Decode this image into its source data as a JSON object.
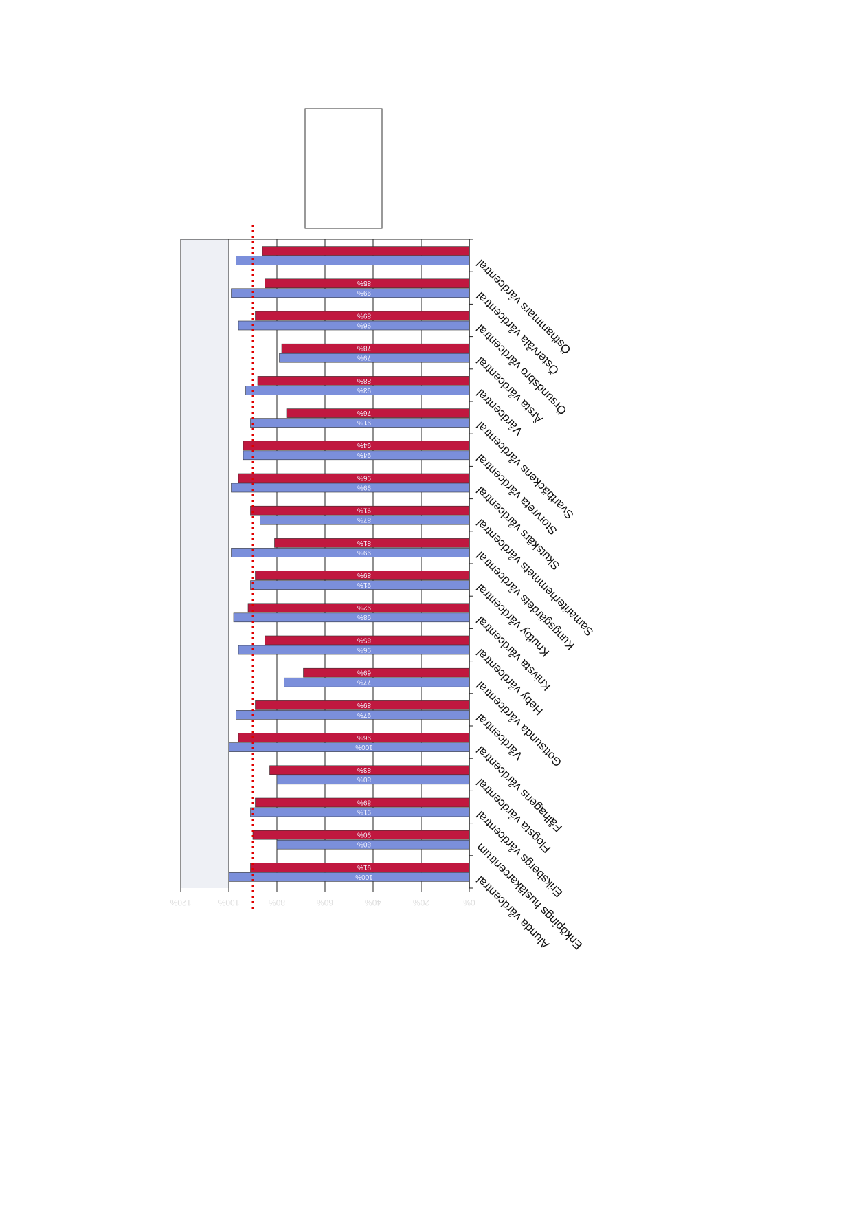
{
  "chart_data": {
    "type": "bar",
    "orientation": "horizontal",
    "categories": [
      "Alunda vårdcentral",
      "Enköpings husläkarcentrum",
      "Eriksbergs vårdcentral",
      "Flogsta vårdcentral",
      "Fålhagens vårdcentral",
      "Vårdcentral",
      "Gottsunda vårdcentral",
      "Heby vårdcentral",
      "Knivsta vårdcentral",
      "Knutby vårdcentral",
      "Kungsgärdets vårdcentral",
      "Samariterhemmets vårdcentral",
      "Skutskärs vårdcentral",
      "Storvreta vårdcentral",
      "Svartbäckens vårdcentral",
      "Vårdcentral",
      "Årsta vårdcentral",
      "Örsundsbro vårdcentral",
      "Östervåla vårdcentral",
      "Östhammars vårdcentral"
    ],
    "series": [
      {
        "color": "#7b8fdb",
        "values": [
          100,
          80,
          91,
          80,
          100,
          97,
          77,
          96,
          98,
          91,
          99,
          87,
          99,
          94,
          91,
          93,
          79,
          96,
          99,
          97
        ],
        "value_labels": [
          "100%",
          "80%",
          "91%",
          "80%",
          "100%",
          "97%",
          "77%",
          "96%",
          "98%",
          "91%",
          "99%",
          "87%",
          "99%",
          "94%",
          "91%",
          "93%",
          "79%",
          "96%",
          "99%",
          null
        ]
      },
      {
        "color": "#c0183f",
        "values": [
          91,
          90,
          89,
          83,
          96,
          89,
          69,
          85,
          92,
          89,
          81,
          91,
          96,
          94,
          76,
          88,
          78,
          89,
          85,
          86
        ],
        "value_labels": [
          "91%",
          "90%",
          "89%",
          "83%",
          "96%",
          "89%",
          "69%",
          "85%",
          "92%",
          "89%",
          "81%",
          "91%",
          "96%",
          "94%",
          "76%",
          "88%",
          "78%",
          "89%",
          "85%",
          null
        ]
      }
    ],
    "xlim": [
      0,
      120
    ],
    "xticks": [
      {
        "value": 0,
        "label": "0%"
      },
      {
        "value": 20,
        "label": "20%"
      },
      {
        "value": 40,
        "label": "40%"
      },
      {
        "value": 60,
        "label": "60%"
      },
      {
        "value": 80,
        "label": "80%"
      },
      {
        "value": 100,
        "label": "100%"
      },
      {
        "value": 120,
        "label": "120%"
      }
    ],
    "target_line": {
      "value": 90,
      "color": "#e00000"
    },
    "grid": true
  }
}
